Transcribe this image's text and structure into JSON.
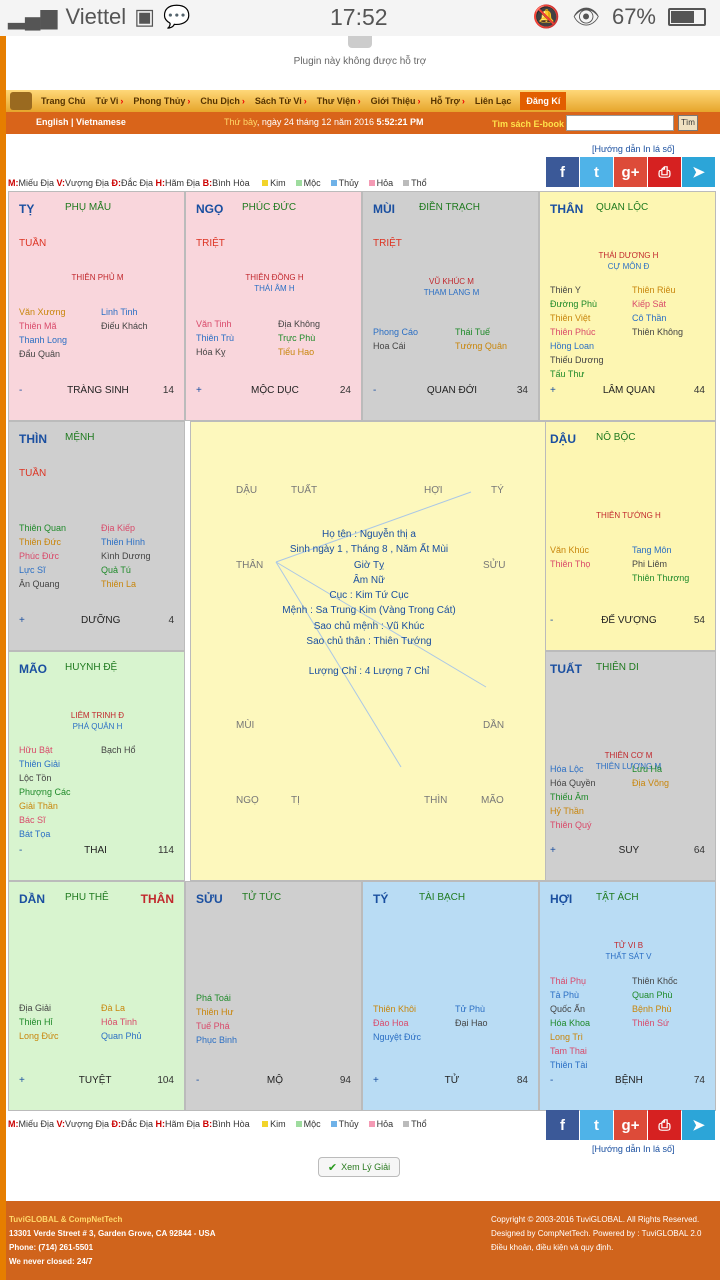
{
  "status": {
    "carrier": "Viettel",
    "time": "17:52",
    "battery": "67%",
    "battery_level": 0.67
  },
  "plugin_msg": "Plugin này không được hỗ trợ",
  "nav": [
    "Trang Chủ",
    "Tử Vi",
    "Phong Thủy",
    "Chu Dịch",
    "Sách Tử Vi",
    "Thư Viện",
    "Giới Thiệu",
    "Hỗ Trợ",
    "Liên Lạc"
  ],
  "nav_register": "Đăng Kí",
  "subbar": {
    "lang": "English | Vietnamese",
    "day": "Thứ bảy",
    "date": ", ngày 24 tháng 12 năm 2016",
    "time": "5:52:21 PM",
    "ebook": "Tìm sách E-book :",
    "ebook_button": "Tìm"
  },
  "guide": "[Hướng dẫn In lá số]",
  "legend": {
    "m": "M:",
    "m_t": "Miếu Địa",
    "v": "V:",
    "v_t": "Vượng Địa",
    "d": "Đ:",
    "d_t": "Đắc Địa",
    "h": "H:",
    "h_t": "Hãm Địa",
    "b": "B:",
    "b_t": "Bình Hòa",
    "kim": "Kim",
    "moc": "Mộc",
    "thuy": "Thủy",
    "hoa": "Hỏa",
    "tho": "Thổ"
  },
  "colors": {
    "kim": "#f2d42a",
    "moc": "#9fdc9f",
    "thuy": "#6fb2e8",
    "hoa": "#f49ab4",
    "tho": "#bbbbbb"
  },
  "social": [
    {
      "icon": "facebook-icon",
      "glyph": "f",
      "color": "#3b5998"
    },
    {
      "icon": "twitter-icon",
      "glyph": "t",
      "color": "#4fb3e8"
    },
    {
      "icon": "google-plus-icon",
      "glyph": "g+",
      "color": "#dd4b39"
    },
    {
      "icon": "print-icon",
      "glyph": "⎙",
      "color": "#d62121"
    },
    {
      "icon": "telegram-icon",
      "glyph": "➤",
      "color": "#2ca5d8"
    }
  ],
  "cells": [
    {
      "branch": "TỴ",
      "palace": "PHỤ MẪU",
      "flag": "TUẦN",
      "main": [
        "THIÊN PHỦ M"
      ],
      "left": [
        "Văn Xương",
        "Thiên Mã",
        "Thanh Long",
        "Đẩu Quân"
      ],
      "right": [
        "Linh Tinh",
        "Điếu Khách"
      ],
      "sign": "-",
      "phase": "TRÀNG SINH",
      "num": "14"
    },
    {
      "branch": "NGỌ",
      "palace": "PHÚC ĐỨC",
      "flag": "TRIỆT",
      "main": [
        "THIÊN ĐỒNG H",
        "THÁI ÂM H"
      ],
      "left": [
        "Văn Tinh",
        "Thiên Trù",
        "Hóa Kỵ"
      ],
      "right": [
        "Địa Không",
        "Trực Phù",
        "Tiểu Hao"
      ],
      "sign": "+",
      "phase": "MỘC DỤC",
      "num": "24"
    },
    {
      "branch": "MÙI",
      "palace": "ĐIỀN TRẠCH",
      "flag": "TRIỆT",
      "main": [
        "VŨ KHÚC M",
        "THAM LANG M"
      ],
      "left": [
        "Phong Cáo",
        "Hoa Cái"
      ],
      "right": [
        "Thái Tuế",
        "Tướng Quân"
      ],
      "sign": "-",
      "phase": "QUAN ĐỚI",
      "num": "34"
    },
    {
      "branch": "THÂN",
      "palace": "QUAN LỘC",
      "flag": "",
      "main": [
        "THÁI DƯƠNG H",
        "CỰ MÔN Đ"
      ],
      "left": [
        "Thiên Y",
        "Đường Phù",
        "Thiên Việt",
        "Thiên Phúc",
        "Hồng Loan",
        "Thiếu Dương",
        "Tấu Thư"
      ],
      "right": [
        "Thiên Riêu",
        "Kiếp Sát",
        "Cô Thần",
        "Thiên Không"
      ],
      "sign": "+",
      "phase": "LÂM QUAN",
      "num": "44"
    },
    {
      "branch": "THÌN",
      "palace": "MỆNH",
      "flag": "TUẦN",
      "main": [],
      "left": [
        "Thiên Quan",
        "Thiên Đức",
        "Phúc Đức",
        "Lực Sĩ",
        "Ân Quang"
      ],
      "right": [
        "Địa Kiếp",
        "Thiên Hình",
        "Kình Dương",
        "Quả Tú",
        "Thiên La"
      ],
      "sign": "+",
      "phase": "DƯỠNG",
      "num": "4"
    },
    {
      "branch": "DẬU",
      "palace": "NÔ BỘC",
      "flag": "",
      "main": [
        "THIÊN TƯỚNG H"
      ],
      "left": [
        "Văn Khúc",
        "Thiên Thọ"
      ],
      "right": [
        "Tang Môn",
        "Phi Liêm",
        "Thiên Thương"
      ],
      "sign": "-",
      "phase": "ĐẾ VƯỢNG",
      "num": "54"
    },
    {
      "branch": "MÃO",
      "palace": "HUYNH ĐỆ",
      "flag": "",
      "main": [
        "LIÊM TRINH Đ",
        "PHÁ QUÂN H"
      ],
      "left": [
        "Hữu Bật",
        "Thiên Giải",
        "Lộc Tồn",
        "Phượng Các",
        "Giải Thần",
        "Bác Sĩ",
        "Bát Tọa"
      ],
      "right": [
        "Bạch Hổ"
      ],
      "sign": "-",
      "phase": "THAI",
      "num": "114"
    },
    {
      "branch": "TUẤT",
      "palace": "THIÊN DI",
      "flag": "",
      "main": [
        "THIÊN CƠ M",
        "THIÊN LƯƠNG M"
      ],
      "left": [
        "Hóa Lộc",
        "Hóa Quyền",
        "Thiếu Âm",
        "Hỷ Thần",
        "Thiên Quý"
      ],
      "right": [
        "Lưu Hà",
        "Địa Võng"
      ],
      "sign": "+",
      "phase": "SUY",
      "num": "64"
    },
    {
      "branch": "DẦN",
      "palace": "PHU THÊ",
      "flag": "",
      "flag2": "THÂN",
      "main": [],
      "left": [
        "Địa Giải",
        "Thiên Hỉ",
        "Long Đức"
      ],
      "right": [
        "Đà La",
        "Hỏa Tinh",
        "Quan Phủ"
      ],
      "sign": "+",
      "phase": "TUYỆT",
      "num": "104"
    },
    {
      "branch": "SỬU",
      "palace": "TỬ TỨC",
      "flag": "",
      "main": [],
      "left": [
        "Phá Toái",
        "Thiên Hư",
        "Tuế Phá",
        "Phục Binh"
      ],
      "right": [],
      "sign": "-",
      "phase": "MỘ",
      "num": "94"
    },
    {
      "branch": "TÝ",
      "palace": "TÀI BẠCH",
      "flag": "",
      "main": [],
      "left": [
        "Thiên Khôi",
        "Đào Hoa",
        "Nguyệt Đức"
      ],
      "right": [
        "Tử Phù",
        "Đại Hao"
      ],
      "sign": "+",
      "phase": "TỬ",
      "num": "84"
    },
    {
      "branch": "HỢI",
      "palace": "TẬT ÁCH",
      "flag": "",
      "main": [
        "TỬ VI B",
        "THẤT SÁT V"
      ],
      "left": [
        "Thái Phụ",
        "Tả Phù",
        "Quốc Ấn",
        "Hóa Khoa",
        "Long Trì",
        "Tam Thai",
        "Thiên Tài"
      ],
      "right": [
        "Thiên Khốc",
        "Quan Phù",
        "Bệnh Phù",
        "Thiên Sứ"
      ],
      "sign": "-",
      "phase": "BỆNH",
      "num": "74"
    }
  ],
  "center": {
    "branches": [
      "DẬU",
      "TUẤT",
      "HỢI",
      "TÝ",
      "THÂN",
      "SỬU",
      "MÙI",
      "DẦN",
      "NGỌ",
      "TỊ",
      "THÌN",
      "MÃO"
    ],
    "info": [
      "Họ tên : Nguyễn thị a",
      "Sinh ngày 1 , Tháng 8 , Năm Ất Mùi",
      "Giờ Tỵ",
      "Âm Nữ",
      "Cục : Kim Tứ Cục",
      "Mệnh : Sa Trung Kim (Vàng Trong Cát)",
      "Sao chủ mệnh : Vũ Khúc",
      "Sao chủ thân : Thiên Tướng",
      "",
      "Lượng Chỉ : 4 Lượng 7 Chỉ"
    ]
  },
  "xem_button": "Xem Lý Giải",
  "footer": {
    "org": "TuviGLOBAL & CompNetTech",
    "addr": "13301 Verde Street # 3, Garden Grove, CA 92844 - USA",
    "phone": "Phone: (714) 261-5501",
    "closed": "We never closed: 24/7",
    "copy": "Copyright © 2003-2016 TuviGLOBAL. All Rights Reserved.",
    "design": "Designed by CompNetTech. Powered by : TuviGLOBAL 2.0",
    "terms": "Điều khoản, điều kiện và quy định."
  }
}
